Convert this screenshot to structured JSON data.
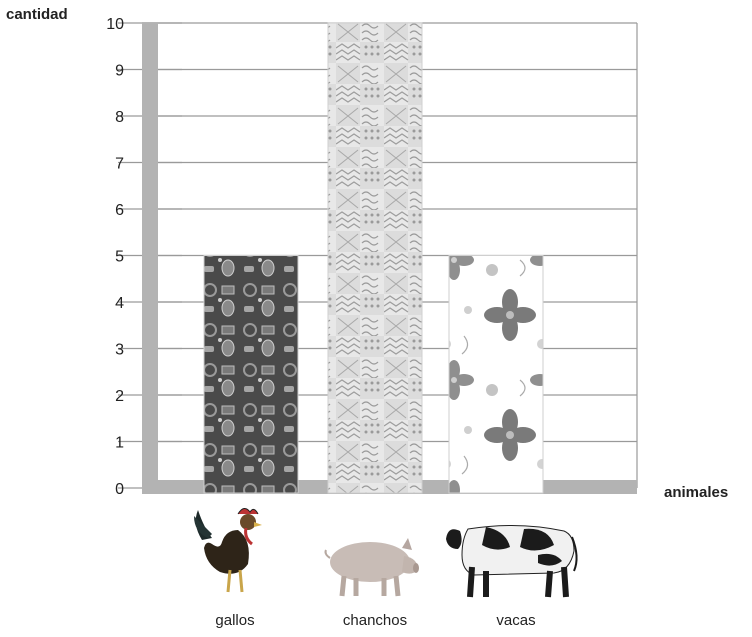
{
  "chart_data": {
    "type": "bar",
    "title": "",
    "ylabel": "cantidad",
    "xlabel": "animales",
    "ylim": [
      0,
      10
    ],
    "yticks": [
      0,
      1,
      2,
      3,
      4,
      5,
      6,
      7,
      8,
      9,
      10
    ],
    "grid": true,
    "categories": [
      "gallos",
      "chanchos",
      "vacas"
    ],
    "values": [
      5,
      10,
      5
    ],
    "bar_patterns": [
      "dark-objects-pattern",
      "gray-geometric-pattern",
      "flower-pattern"
    ],
    "category_icons": [
      "rooster-icon",
      "pig-icon",
      "cow-icon"
    ]
  }
}
